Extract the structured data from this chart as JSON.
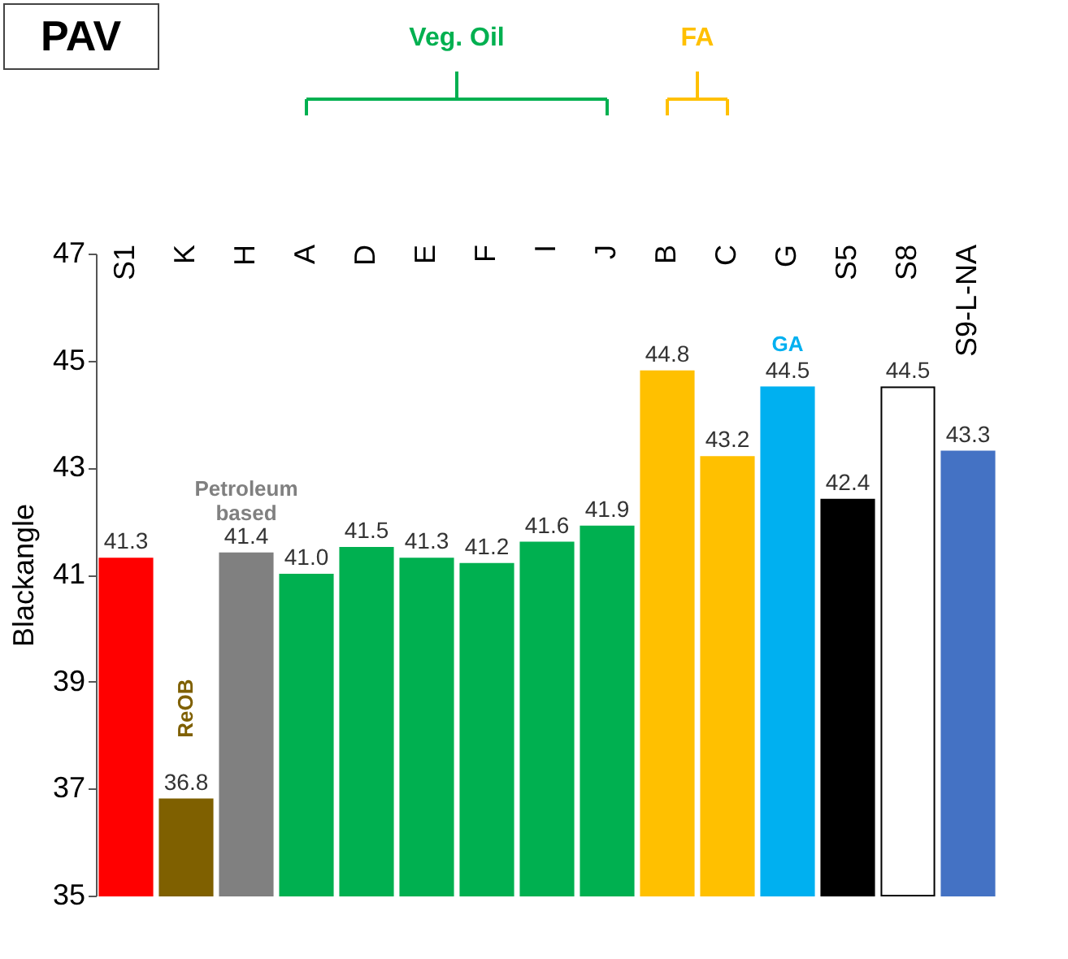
{
  "chart_data": {
    "type": "bar",
    "title": "PAV",
    "ylabel": "Blackangle",
    "categories": [
      "S1",
      "K",
      "H",
      "A",
      "D",
      "E",
      "F",
      "I",
      "J",
      "B",
      "C",
      "G",
      "S5",
      "S8",
      "S9-L-NA"
    ],
    "values": [
      41.3,
      36.8,
      41.4,
      41.0,
      41.5,
      41.3,
      41.2,
      41.6,
      41.9,
      44.8,
      43.2,
      44.5,
      42.4,
      44.5,
      43.3
    ],
    "colors": [
      "#ff0000",
      "#7f6000",
      "#808080",
      "#00b050",
      "#00b050",
      "#00b050",
      "#00b050",
      "#00b050",
      "#00b050",
      "#ffc000",
      "#ffc000",
      "#00b0f0",
      "#000000",
      "#ffffff",
      "#4472c4"
    ],
    "value_labels": [
      "41.3",
      "36.8",
      "41.4",
      "41.0",
      "41.5",
      "41.3",
      "41.2",
      "41.6",
      "41.9",
      "44.8",
      "43.2",
      "44.5",
      "42.4",
      "44.5",
      "43.3"
    ],
    "ylim": [
      35,
      47
    ],
    "yticks": [
      35,
      37,
      39,
      41,
      43,
      45,
      47
    ],
    "grid": false,
    "annotations": [
      "Veg. Oil",
      "FA",
      "Petroleum based",
      "ReOB",
      "GA"
    ]
  }
}
